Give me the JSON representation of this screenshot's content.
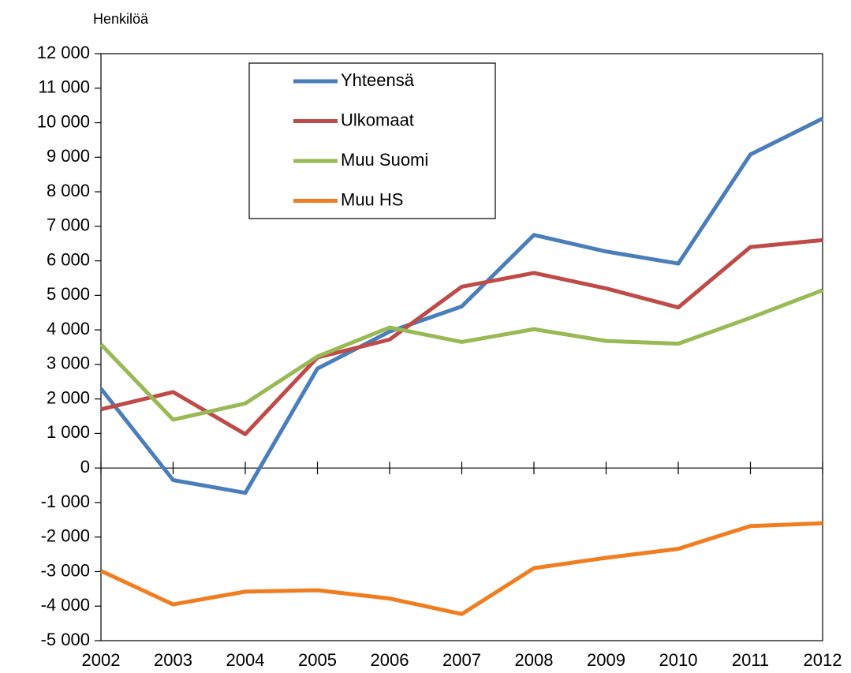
{
  "chart_data": {
    "type": "line",
    "y_label": "Henkilöä",
    "categories": [
      "2002",
      "2003",
      "2004",
      "2005",
      "2006",
      "2007",
      "2008",
      "2009",
      "2010",
      "2011",
      "2012"
    ],
    "series": [
      {
        "name": "Yhteensä",
        "color": "#4a7ebb",
        "values": [
          2300,
          -350,
          -720,
          2880,
          3950,
          4680,
          6750,
          6270,
          5920,
          9080,
          10120
        ]
      },
      {
        "name": "Ulkomaat",
        "color": "#be4b48",
        "values": [
          1700,
          2200,
          980,
          3200,
          3720,
          5250,
          5650,
          5200,
          4650,
          6400,
          6600
        ]
      },
      {
        "name": "Muu Suomi",
        "color": "#98b954",
        "values": [
          3580,
          1400,
          1870,
          3230,
          4070,
          3650,
          4020,
          3680,
          3600,
          4350,
          5150
        ]
      },
      {
        "name": "Muu HS",
        "color": "#f07d1f",
        "values": [
          -2980,
          -3950,
          -3580,
          -3540,
          -3780,
          -4230,
          -2900,
          -2600,
          -2340,
          -1680,
          -1600
        ]
      }
    ],
    "ylim": [
      -5000,
      12000
    ],
    "yticks": [
      {
        "value": -5000,
        "label": "-5 000"
      },
      {
        "value": -4000,
        "label": "-4 000"
      },
      {
        "value": -3000,
        "label": "-3 000"
      },
      {
        "value": -2000,
        "label": "-2 000"
      },
      {
        "value": -1000,
        "label": "-1 000"
      },
      0,
      {
        "value": 1000,
        "label": "1 000"
      },
      {
        "value": 2000,
        "label": "2 000"
      },
      {
        "value": 3000,
        "label": "3 000"
      },
      {
        "value": 4000,
        "label": "4 000"
      },
      {
        "value": 5000,
        "label": "5 000"
      },
      {
        "value": 6000,
        "label": "6 000"
      },
      {
        "value": 7000,
        "label": "7 000"
      },
      {
        "value": 8000,
        "label": "8 000"
      },
      {
        "value": 9000,
        "label": "9 000"
      },
      {
        "value": 10000,
        "label": "10 000"
      },
      {
        "value": 11000,
        "label": "11 000"
      },
      {
        "value": 12000,
        "label": "12 000"
      }
    ],
    "grid": false
  }
}
